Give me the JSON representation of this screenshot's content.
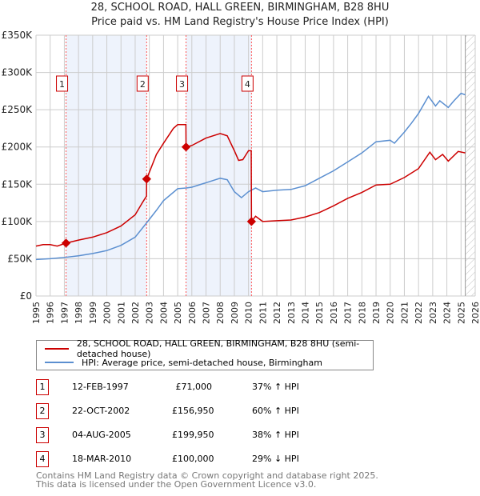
{
  "chart_data": {
    "type": "line",
    "title": "28, SCHOOL ROAD, HALL GREEN, BIRMINGHAM, B28 8HU",
    "subtitle": "Price paid vs. HM Land Registry's House Price Index (HPI)",
    "xlim": [
      1995,
      2026
    ],
    "ylim": [
      0,
      350000
    ],
    "x_ticks": [
      "1995",
      "1996",
      "1997",
      "1998",
      "1999",
      "2000",
      "2001",
      "2002",
      "2003",
      "2004",
      "2005",
      "2006",
      "2007",
      "2008",
      "2009",
      "2010",
      "2011",
      "2012",
      "2013",
      "2014",
      "2015",
      "2016",
      "2017",
      "2018",
      "2019",
      "2020",
      "2021",
      "2022",
      "2023",
      "2024",
      "2025",
      "2026"
    ],
    "y_ticks": [
      {
        "v": 0,
        "label": "£0"
      },
      {
        "v": 50000,
        "label": "£50K"
      },
      {
        "v": 100000,
        "label": "£100K"
      },
      {
        "v": 150000,
        "label": "£150K"
      },
      {
        "v": 200000,
        "label": "£200K"
      },
      {
        "v": 250000,
        "label": "£250K"
      },
      {
        "v": 300000,
        "label": "£300K"
      },
      {
        "v": 350000,
        "label": "£350K"
      }
    ],
    "series": [
      {
        "name": "28, SCHOOL ROAD, HALL GREEN, BIRMINGHAM, B28 8HU (semi-detached house)",
        "color": "#cc0000",
        "x": [
          1995,
          1995.5,
          1996,
          1996.5,
          1997.12,
          1998,
          1999,
          2000,
          2001,
          2002,
          2002.5,
          2002.8,
          2002.81,
          2003.5,
          2004,
          2004.7,
          2005,
          2005.58,
          2005.59,
          2006,
          2007,
          2008,
          2008.5,
          2009,
          2009.3,
          2009.6,
          2010,
          2010.19,
          2010.21,
          2010.5,
          2011,
          2012,
          2013,
          2014,
          2015,
          2016,
          2017,
          2018,
          2019,
          2020,
          2021,
          2022,
          2022.8,
          2023.2,
          2023.7,
          2024.1,
          2024.8,
          2025.3
        ],
        "y": [
          67000,
          69000,
          69000,
          67000,
          71000,
          75000,
          79000,
          85000,
          94000,
          109000,
          125000,
          134000,
          156950,
          190000,
          205000,
          225000,
          230000,
          230000,
          199950,
          202000,
          212000,
          218000,
          215000,
          195000,
          182000,
          183000,
          195000,
          195000,
          100000,
          107000,
          100000,
          101000,
          102000,
          106000,
          112000,
          121000,
          131000,
          139000,
          149000,
          150000,
          159000,
          171000,
          193000,
          183000,
          190000,
          181000,
          194000,
          192000
        ]
      },
      {
        "name": "HPI: Average price, semi-detached house, Birmingham",
        "color": "#5b8fd0",
        "x": [
          1995,
          1996,
          1997.12,
          1998,
          1999,
          2000,
          2001,
          2002,
          2002.8,
          2003.5,
          2004,
          2005,
          2005.6,
          2006,
          2007,
          2008,
          2008.5,
          2009,
          2009.5,
          2010,
          2010.5,
          2011,
          2012,
          2013,
          2014,
          2015,
          2016,
          2017,
          2018,
          2019,
          2020,
          2020.3,
          2021,
          2021.5,
          2022,
          2022.7,
          2023.2,
          2023.5,
          2024.1,
          2024.5,
          2025,
          2025.3
        ],
        "y": [
          49000,
          50000,
          52000,
          54000,
          57000,
          61000,
          68000,
          79000,
          98000,
          115000,
          128000,
          144000,
          145000,
          146000,
          152000,
          158000,
          156000,
          140000,
          132000,
          140000,
          145000,
          140000,
          142000,
          143000,
          148000,
          158000,
          168000,
          180000,
          192000,
          207000,
          209000,
          205000,
          220000,
          232000,
          245000,
          268000,
          255000,
          262000,
          253000,
          262000,
          272000,
          270000
        ]
      }
    ],
    "sales": [
      {
        "n": "1",
        "date": "12-FEB-1997",
        "x": 1997.12,
        "price": "£71,000",
        "value": 71000,
        "hpi": "37% ↑ HPI"
      },
      {
        "n": "2",
        "date": "22-OCT-2002",
        "x": 2002.81,
        "price": "£156,950",
        "value": 156950,
        "hpi": "60% ↑ HPI"
      },
      {
        "n": "3",
        "date": "04-AUG-2005",
        "x": 2005.59,
        "price": "£199,950",
        "value": 199950,
        "hpi": "38% ↑ HPI"
      },
      {
        "n": "4",
        "date": "18-MAR-2010",
        "x": 2010.21,
        "price": "£100,000",
        "value": 100000,
        "hpi": "29% ↓ HPI"
      }
    ],
    "shaded": [
      [
        1997.12,
        2002.81
      ],
      [
        2005.59,
        2010.21
      ]
    ],
    "forecast_from": 2025.3
  },
  "legend": {
    "red": "28, SCHOOL ROAD, HALL GREEN, BIRMINGHAM, B28 8HU (semi-detached house)",
    "blue": "HPI: Average price, semi-detached house, Birmingham"
  },
  "footer": {
    "line1": "Contains HM Land Registry data © Crown copyright and database right 2025.",
    "line2": "This data is licensed under the Open Government Licence v3.0."
  }
}
